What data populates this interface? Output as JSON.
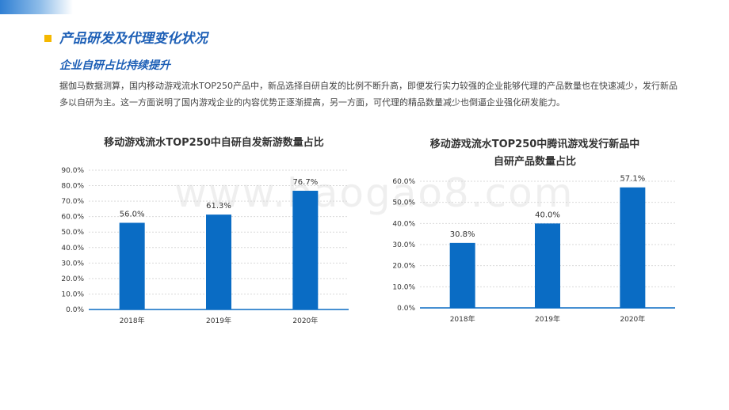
{
  "header": {
    "main_title": "产品研发及代理变化状况",
    "sub_title": "企业自研占比持续提升",
    "body": "据伽马数据测算，国内移动游戏流水TOP250产品中，新品选择自研自发的比例不断升高，即便发行实力较强的企业能够代理的产品数量也在快速减少，发行新品多以自研为主。这一方面说明了国内游戏企业的内容优势正逐渐提高，另一方面，可代理的精品数量减少也倒逼企业强化研发能力。"
  },
  "watermark": "www.baogao8.com",
  "colors": {
    "accent": "#1d5fb6",
    "bar": "#0a6cc4",
    "marker": "#f5b800"
  },
  "chart_data": [
    {
      "type": "bar",
      "title": "移动游戏流水TOP250中自研自发新游数量占比",
      "categories": [
        "2018年",
        "2019年",
        "2020年"
      ],
      "values": [
        56.0,
        61.3,
        76.7
      ],
      "value_labels": [
        "56.0%",
        "61.3%",
        "76.7%"
      ],
      "yticks": [
        "0.0%",
        "10.0%",
        "20.0%",
        "30.0%",
        "40.0%",
        "50.0%",
        "60.0%",
        "70.0%",
        "80.0%",
        "90.0%"
      ],
      "ylim": [
        0,
        90
      ],
      "grid": true
    },
    {
      "type": "bar",
      "title": "移动游戏流水TOP250中腾讯游戏发行新品中自研产品数量占比",
      "title_lines": [
        "移动游戏流水TOP250中腾讯游戏发行新品中",
        "自研产品数量占比"
      ],
      "categories": [
        "2018年",
        "2019年",
        "2020年"
      ],
      "values": [
        30.8,
        40.0,
        57.1
      ],
      "value_labels": [
        "30.8%",
        "40.0%",
        "57.1%"
      ],
      "yticks": [
        "0.0%",
        "10.0%",
        "20.0%",
        "30.0%",
        "40.0%",
        "50.0%",
        "60.0%"
      ],
      "ylim": [
        0,
        60
      ],
      "grid": true
    }
  ]
}
